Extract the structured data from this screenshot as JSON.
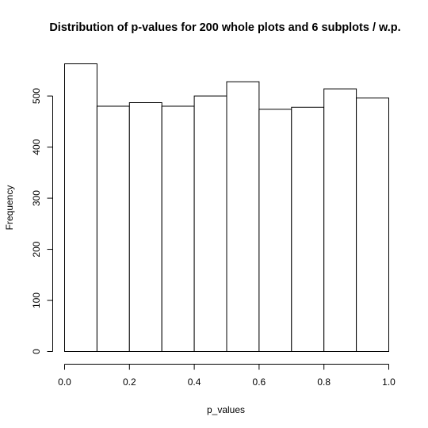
{
  "chart_data": {
    "type": "bar",
    "title": "Distribution of p-values for 200 whole plots and 6 subplots / w.p.",
    "xlabel": "p_values",
    "ylabel": "Frequency",
    "bin_edges": [
      0.0,
      0.1,
      0.2,
      0.3,
      0.4,
      0.5,
      0.6,
      0.7,
      0.8,
      0.9,
      1.0
    ],
    "values": [
      563,
      480,
      487,
      480,
      500,
      528,
      474,
      478,
      514,
      496
    ],
    "xlim": [
      0.0,
      1.0
    ],
    "ylim": [
      0,
      563
    ],
    "x_ticks": [
      "0.0",
      "0.2",
      "0.4",
      "0.6",
      "0.8",
      "1.0"
    ],
    "y_ticks": [
      "0",
      "100",
      "200",
      "300",
      "400",
      "500"
    ],
    "grid": false,
    "legend": "none"
  }
}
